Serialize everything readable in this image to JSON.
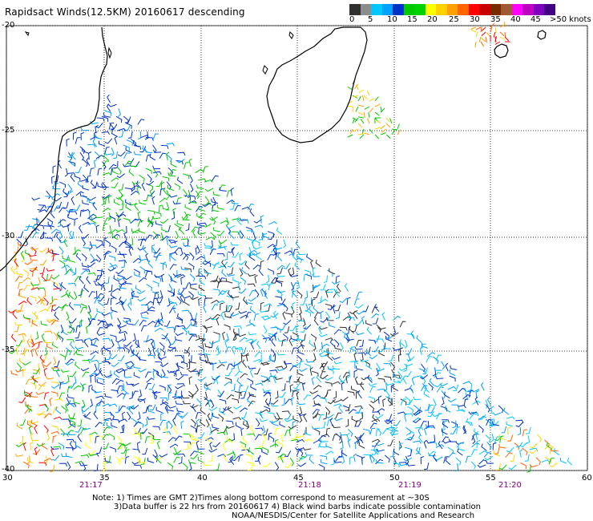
{
  "title": "Rapidsact Winds(12.5KM) 20160617 descending",
  "legend": {
    "labels": [
      "0",
      "5",
      "10",
      "15",
      "20",
      "25",
      "30",
      "35",
      "40",
      "45",
      ">50 knots"
    ],
    "colors": [
      "#303030",
      "#8c8c8c",
      "#00c8ff",
      "#00a0ff",
      "#0032c8",
      "#00c800",
      "#00d200",
      "#ffff00",
      "#ffd200",
      "#ffa000",
      "#ff6400",
      "#ff0000",
      "#c80000",
      "#7a2a00",
      "#a05a32",
      "#ff00ff",
      "#c000c0",
      "#8000c0",
      "#400080"
    ]
  },
  "axes": {
    "lat_labels": [
      "-20",
      "-25",
      "-30",
      "-35",
      "-40"
    ],
    "lon_labels": [
      "30",
      "35",
      "40",
      "45",
      "50",
      "55",
      "60"
    ],
    "time_labels": [
      "21:17",
      "21:18",
      "21:19",
      "21:20"
    ]
  },
  "notes": {
    "line1": "Note: 1) Times are GMT 2)Times along bottom correspond to measurement at ~30S",
    "line2": "3)Data buffer is 22 hrs from 20160617 4) Black wind barbs indicate possible contamination",
    "line3": "NOAA/NESDIS/Center for Satellite Applications and Research"
  },
  "colors": {
    "time_label": "#800080",
    "grid": "#000000",
    "coast": "#000000"
  }
}
